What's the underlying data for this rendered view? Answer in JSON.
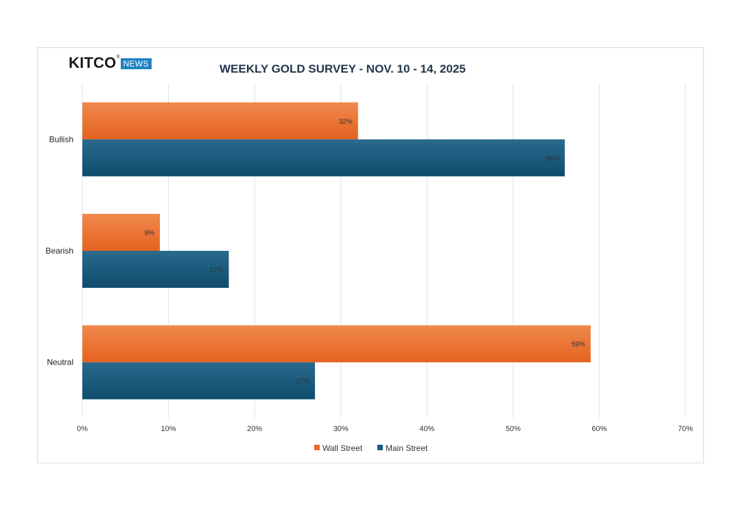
{
  "logo": {
    "brand": "KITCO",
    "reg": "®",
    "tag": "NEWS"
  },
  "chart_data": {
    "type": "bar",
    "orientation": "horizontal",
    "title": "WEEKLY GOLD SURVEY - NOV. 10 - 14, 2025",
    "categories": [
      "Bullish",
      "Bearish",
      "Neutral"
    ],
    "series": [
      {
        "name": "Wall Street",
        "values": [
          32,
          9,
          59
        ],
        "color": "#e8692a"
      },
      {
        "name": "Main Street",
        "values": [
          56,
          17,
          27
        ],
        "color": "#1a5b7e"
      }
    ],
    "data_labels": {
      "Wall Street": [
        "32%",
        "9%",
        "59%"
      ],
      "Main Street": [
        "56%",
        "17%",
        "27%"
      ]
    },
    "xlim": [
      0,
      70
    ],
    "xticks": [
      0,
      10,
      20,
      30,
      40,
      50,
      60,
      70
    ],
    "xtick_labels": [
      "0%",
      "10%",
      "20%",
      "30%",
      "40%",
      "50%",
      "60%",
      "70%"
    ],
    "xlabel": "",
    "ylabel": "",
    "grid": true,
    "legend_position": "bottom"
  }
}
